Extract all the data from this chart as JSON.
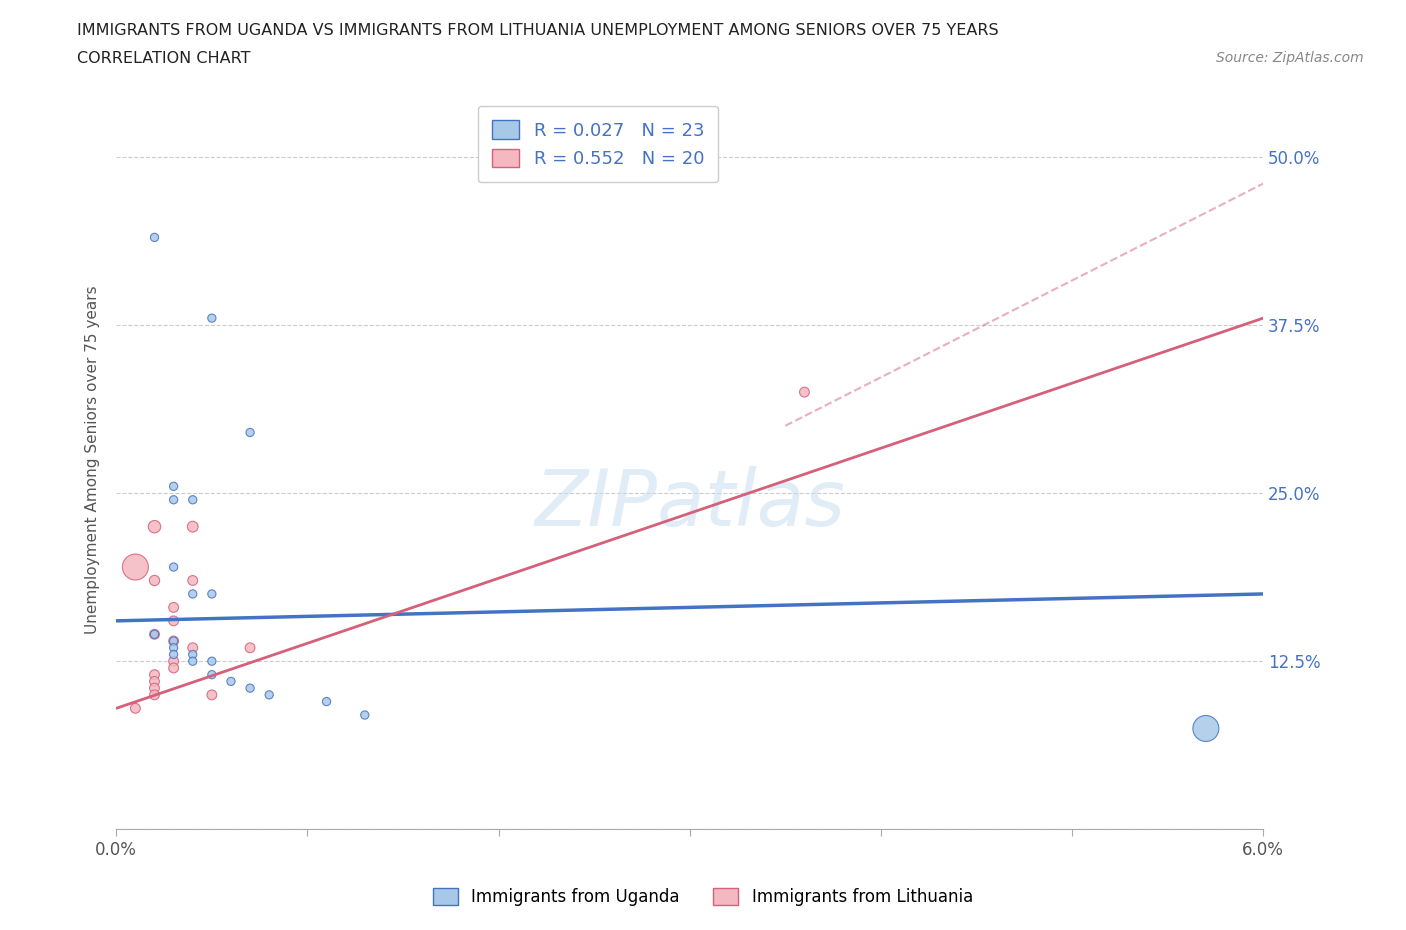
{
  "title_line1": "IMMIGRANTS FROM UGANDA VS IMMIGRANTS FROM LITHUANIA UNEMPLOYMENT AMONG SENIORS OVER 75 YEARS",
  "title_line2": "CORRELATION CHART",
  "source": "Source: ZipAtlas.com",
  "ylabel": "Unemployment Among Seniors over 75 years",
  "xlim": [
    0.0,
    0.06
  ],
  "ylim": [
    0.0,
    0.55
  ],
  "xticks": [
    0.0,
    0.01,
    0.02,
    0.03,
    0.04,
    0.05,
    0.06
  ],
  "xticklabels": [
    "0.0%",
    "",
    "",
    "",
    "",
    "",
    "6.0%"
  ],
  "yticks": [
    0.0,
    0.125,
    0.25,
    0.375,
    0.5
  ],
  "yticklabels": [
    "",
    "12.5%",
    "25.0%",
    "37.5%",
    "50.0%"
  ],
  "uganda_color": "#a8c8e8",
  "uganda_color_dark": "#4472c4",
  "lithuania_color": "#f4b8c0",
  "lithuania_color_dark": "#d4607a",
  "uganda_R": 0.027,
  "uganda_N": 23,
  "lithuania_R": 0.552,
  "lithuania_N": 20,
  "watermark": "ZIPatlas",
  "uganda_scatter": [
    [
      0.002,
      0.44
    ],
    [
      0.005,
      0.38
    ],
    [
      0.007,
      0.295
    ],
    [
      0.003,
      0.255
    ],
    [
      0.003,
      0.245
    ],
    [
      0.004,
      0.245
    ],
    [
      0.003,
      0.195
    ],
    [
      0.005,
      0.175
    ],
    [
      0.004,
      0.175
    ],
    [
      0.002,
      0.145
    ],
    [
      0.003,
      0.14
    ],
    [
      0.003,
      0.135
    ],
    [
      0.003,
      0.13
    ],
    [
      0.004,
      0.13
    ],
    [
      0.004,
      0.125
    ],
    [
      0.005,
      0.125
    ],
    [
      0.005,
      0.115
    ],
    [
      0.006,
      0.11
    ],
    [
      0.007,
      0.105
    ],
    [
      0.008,
      0.1
    ],
    [
      0.011,
      0.095
    ],
    [
      0.013,
      0.085
    ],
    [
      0.057,
      0.075
    ]
  ],
  "lithuania_scatter": [
    [
      0.001,
      0.195
    ],
    [
      0.002,
      0.225
    ],
    [
      0.004,
      0.225
    ],
    [
      0.002,
      0.185
    ],
    [
      0.004,
      0.185
    ],
    [
      0.003,
      0.165
    ],
    [
      0.003,
      0.155
    ],
    [
      0.002,
      0.145
    ],
    [
      0.003,
      0.14
    ],
    [
      0.004,
      0.135
    ],
    [
      0.003,
      0.125
    ],
    [
      0.003,
      0.12
    ],
    [
      0.002,
      0.115
    ],
    [
      0.002,
      0.11
    ],
    [
      0.002,
      0.105
    ],
    [
      0.002,
      0.1
    ],
    [
      0.005,
      0.1
    ],
    [
      0.007,
      0.135
    ],
    [
      0.036,
      0.325
    ],
    [
      0.001,
      0.09
    ]
  ],
  "uganda_bubble_sizes": [
    35,
    35,
    35,
    35,
    35,
    35,
    35,
    35,
    35,
    35,
    35,
    35,
    35,
    35,
    35,
    35,
    35,
    35,
    35,
    35,
    35,
    35,
    350
  ],
  "lithuania_bubble_sizes": [
    350,
    80,
    60,
    55,
    50,
    50,
    50,
    50,
    50,
    50,
    50,
    50,
    50,
    50,
    50,
    50,
    50,
    50,
    50,
    50
  ]
}
